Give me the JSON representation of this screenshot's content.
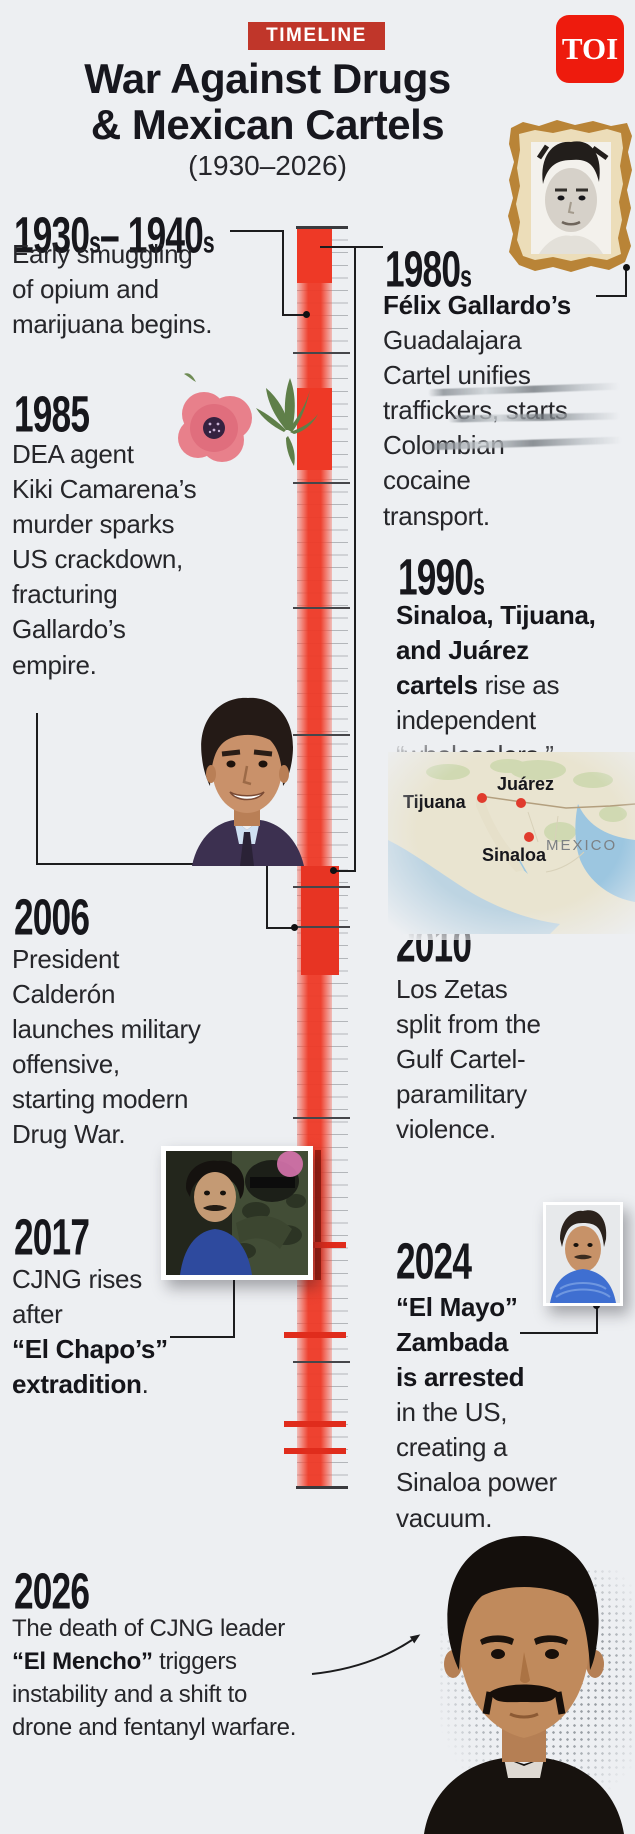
{
  "header": {
    "badge": "TIMELINE",
    "logo": "TOI",
    "title_line1": "War Against Drugs",
    "title_line2": "& Mexican Cartels",
    "subtitle": "(1930–2026)"
  },
  "events": [
    {
      "year": "1930s– 1940s",
      "segments": [
        {
          "text": "Early smuggling\nof opium and\nmarijuana begins.",
          "bold": false
        }
      ]
    },
    {
      "year": "1980s",
      "segments": [
        {
          "text": "Félix Gallardo’s",
          "bold": true
        },
        {
          "text": "\nGuadalajara\nCartel unifies\ntraffickers, starts\nColombian\ncocaine\ntransport.",
          "bold": false
        }
      ]
    },
    {
      "year": "1985",
      "segments": [
        {
          "text": "DEA agent\nKiki Camarena’s\nmurder sparks\nUS crackdown,\nfracturing\nGallardo’s\nempire.",
          "bold": false
        }
      ]
    },
    {
      "year": "1990s",
      "segments": [
        {
          "text": "Sinaloa, Tijuana,\nand Juárez\ncartels",
          "bold": true
        },
        {
          "text": " rise as\nindependent\n“wholesalers.”",
          "bold": false
        }
      ]
    },
    {
      "year": "2006",
      "segments": [
        {
          "text": "President\nCalderón\nlaunches military\noffensive,\nstarting modern\nDrug War.",
          "bold": false
        }
      ]
    },
    {
      "year": "2010",
      "segments": [
        {
          "text": "Los Zetas\nsplit from the\nGulf Cartel-\nparamilitary\nviolence.",
          "bold": false
        }
      ]
    },
    {
      "year": "2017",
      "segments": [
        {
          "text": "CJNG rises\nafter\n",
          "bold": false
        },
        {
          "text": "“El Chapo’s”\nextradition",
          "bold": true
        },
        {
          "text": ".",
          "bold": false
        }
      ]
    },
    {
      "year": "2024",
      "segments": [
        {
          "text": "“El Mayo”\nZambada\nis arrested",
          "bold": true
        },
        {
          "text": "\nin the US,\ncreating a\nSinaloa power\nvacuum.",
          "bold": false
        }
      ]
    },
    {
      "year": "2026",
      "segments": [
        {
          "text": "The death of CJNG leader\n",
          "bold": false
        },
        {
          "text": "“El Mencho”",
          "bold": true
        },
        {
          "text": " triggers\ninstability and a shift to\ndrone and fentanyl warfare.",
          "bold": false
        }
      ]
    }
  ],
  "map": {
    "country_label": "MEXICO",
    "cities": [
      {
        "name": "Tijuana"
      },
      {
        "name": "Juárez"
      },
      {
        "name": "Sinaloa"
      }
    ]
  },
  "colors": {
    "accent_red": "#c0362a",
    "bar_red": "#ee3926",
    "logo_red": "#ee1b0d"
  }
}
